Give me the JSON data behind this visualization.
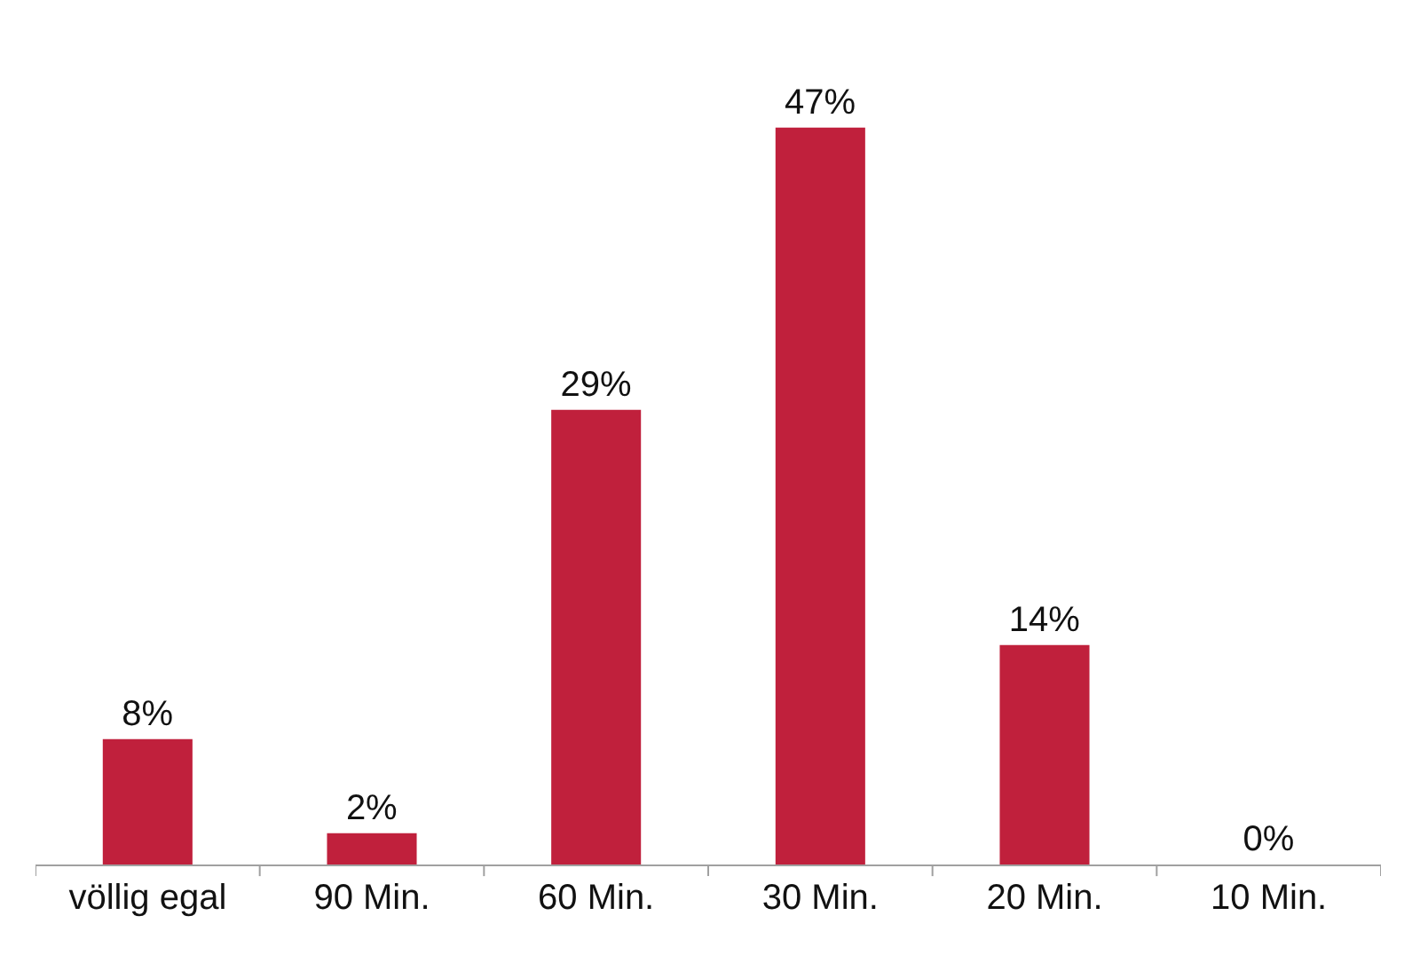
{
  "chart_data": {
    "type": "bar",
    "categories": [
      "völlig egal",
      "90 Min.",
      "60 Min.",
      "30 Min.",
      "20 Min.",
      "10 Min."
    ],
    "values": [
      8,
      2,
      29,
      47,
      14,
      0
    ],
    "value_labels": [
      "8%",
      "2%",
      "29%",
      "47%",
      "14%",
      "0%"
    ],
    "color": "#c0203c",
    "legend": false
  }
}
